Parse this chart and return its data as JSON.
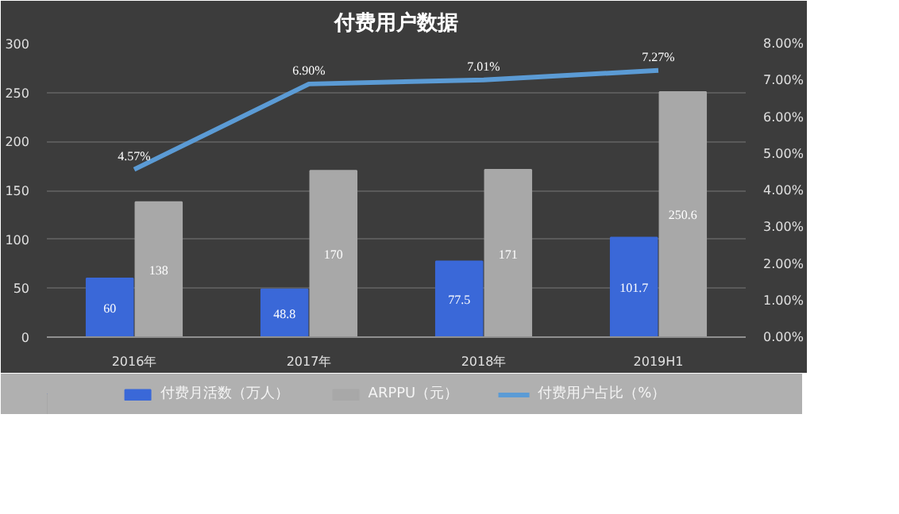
{
  "chart_data": {
    "type": "bar",
    "title": "付费用户数据",
    "categories": [
      "2016年",
      "2017年",
      "2018年",
      "2019H1"
    ],
    "series": [
      {
        "name": "付费月活数（万人）",
        "color": "#3a68d8",
        "values": [
          60,
          48.8,
          77.5,
          101.7
        ],
        "value_labels": [
          "60",
          "48.8",
          "77.5",
          "101.7"
        ]
      },
      {
        "name": "ARPPU（元）",
        "color": "#a8a8a8",
        "values": [
          138,
          170,
          171,
          250.6
        ],
        "value_labels": [
          "138",
          "170",
          "171",
          "250.6"
        ]
      },
      {
        "name": "付费用户占比（%）",
        "type": "line",
        "axis": "y2",
        "color": "#5b9bd5",
        "values": [
          4.57,
          6.9,
          7.01,
          7.27
        ],
        "value_labels": [
          "4.57%",
          "6.90%",
          "7.01%",
          "7.27%"
        ]
      }
    ],
    "ylim": [
      0,
      300
    ],
    "yticks": [
      0,
      50,
      100,
      150,
      200,
      250,
      300
    ],
    "y2lim": [
      0,
      8
    ],
    "y2ticks": [
      {
        "value": 0,
        "label": "0.00%"
      },
      {
        "value": 1,
        "label": "1.00%"
      },
      {
        "value": 2,
        "label": "2.00%"
      },
      {
        "value": 3,
        "label": "3.00%"
      },
      {
        "value": 4,
        "label": "4.00%"
      },
      {
        "value": 5,
        "label": "5.00%"
      },
      {
        "value": 6,
        "label": "6.00%"
      },
      {
        "value": 7,
        "label": "7.00%"
      },
      {
        "value": 8,
        "label": "8.00%"
      }
    ],
    "grid": "y",
    "legend": "bottom",
    "marker": "none",
    "line_style": "solid"
  }
}
